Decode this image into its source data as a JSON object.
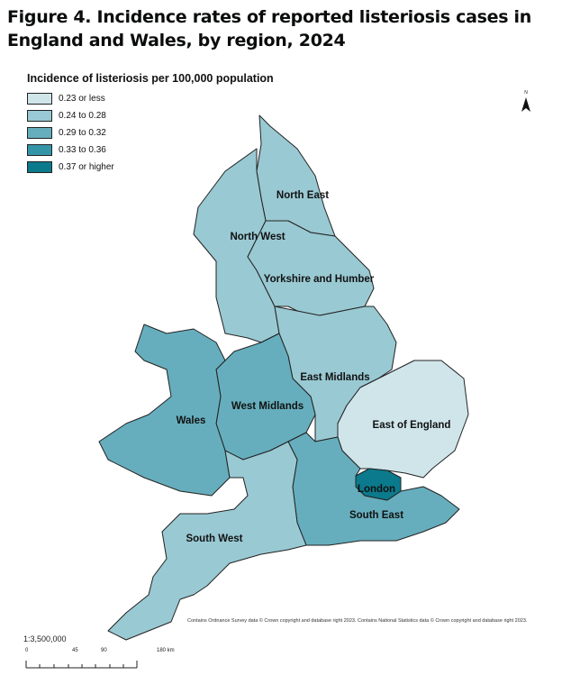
{
  "title": "Figure 4. Incidence rates of reported listeriosis cases in England and Wales, by region, 2024",
  "legend": {
    "title": "Incidence of listeriosis per 100,000 population",
    "items": [
      {
        "label": "0.23 or less",
        "color": "#cfe5ea"
      },
      {
        "label": "0.24 to 0.28",
        "color": "#99c9d3"
      },
      {
        "label": "0.29 to 0.32",
        "color": "#66aebd"
      },
      {
        "label": "0.33 to 0.36",
        "color": "#3595a8"
      },
      {
        "label": "0.37 or higher",
        "color": "#0b7a8c"
      }
    ]
  },
  "regions": {
    "north_east": {
      "name": "North East",
      "band": 1
    },
    "north_west": {
      "name": "North West",
      "band": 1
    },
    "yorkshire": {
      "name": "Yorkshire and Humber",
      "band": 1
    },
    "east_midlands": {
      "name": "East Midlands",
      "band": 1
    },
    "west_midlands": {
      "name": "West Midlands",
      "band": 2
    },
    "wales": {
      "name": "Wales",
      "band": 2
    },
    "east_of_england": {
      "name": "East of England",
      "band": 0
    },
    "london": {
      "name": "London",
      "band": 4
    },
    "south_east": {
      "name": "South East",
      "band": 2
    },
    "south_west": {
      "name": "South West",
      "band": 1
    }
  },
  "north_label": "N",
  "credit": "Contains Ordnance Survey data © Crown copyright and database right 2023.  Contains National Statistics data © Crown copyright and database right 2023.",
  "scale": {
    "ratio": "1:3,500,000",
    "ticks": [
      "0",
      "45",
      "90",
      "180 km"
    ]
  }
}
